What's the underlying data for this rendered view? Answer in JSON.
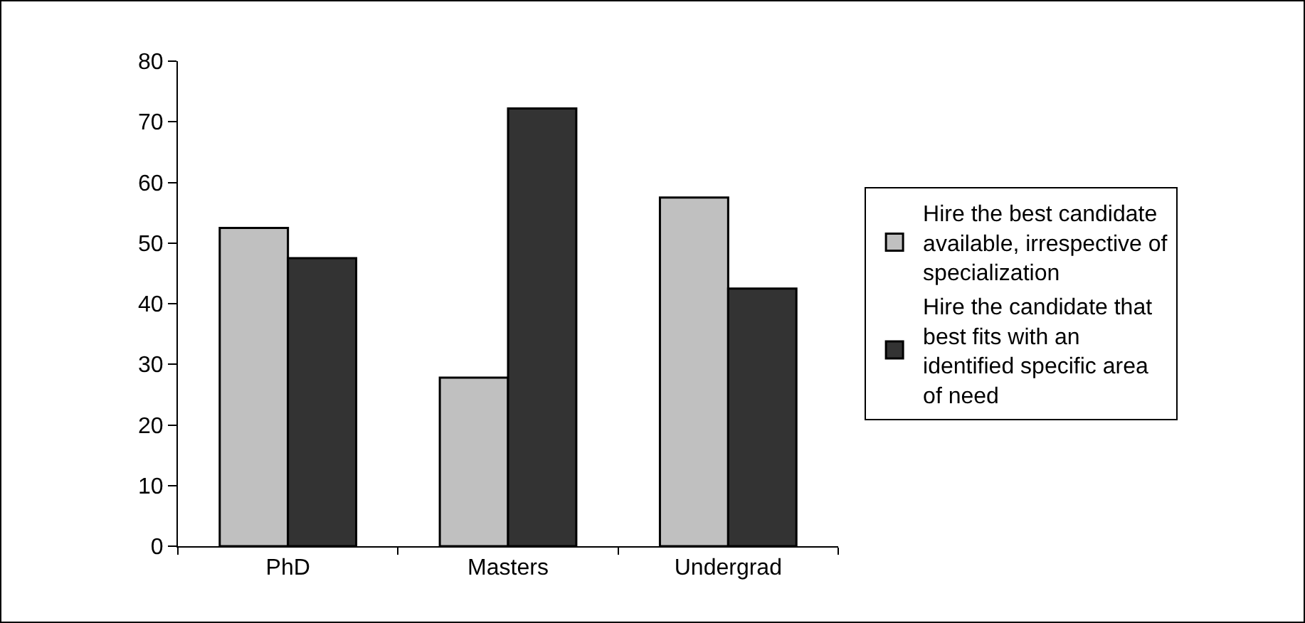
{
  "chart_data": {
    "type": "bar",
    "categories": [
      "PhD",
      "Masters",
      "Undergrad"
    ],
    "series": [
      {
        "name": "Hire the best candidate available, irrespective of specialization",
        "color": "#c0c0c0",
        "values": [
          52.5,
          27.8,
          57.5
        ]
      },
      {
        "name": "Hire the candidate that best fits with an identified specific area of need",
        "color": "#333333",
        "values": [
          47.5,
          72.2,
          42.5
        ]
      }
    ],
    "ylim": [
      0,
      80
    ],
    "yticks": [
      0,
      10,
      20,
      30,
      40,
      50,
      60,
      70,
      80
    ],
    "grid": false,
    "legend": "right"
  }
}
